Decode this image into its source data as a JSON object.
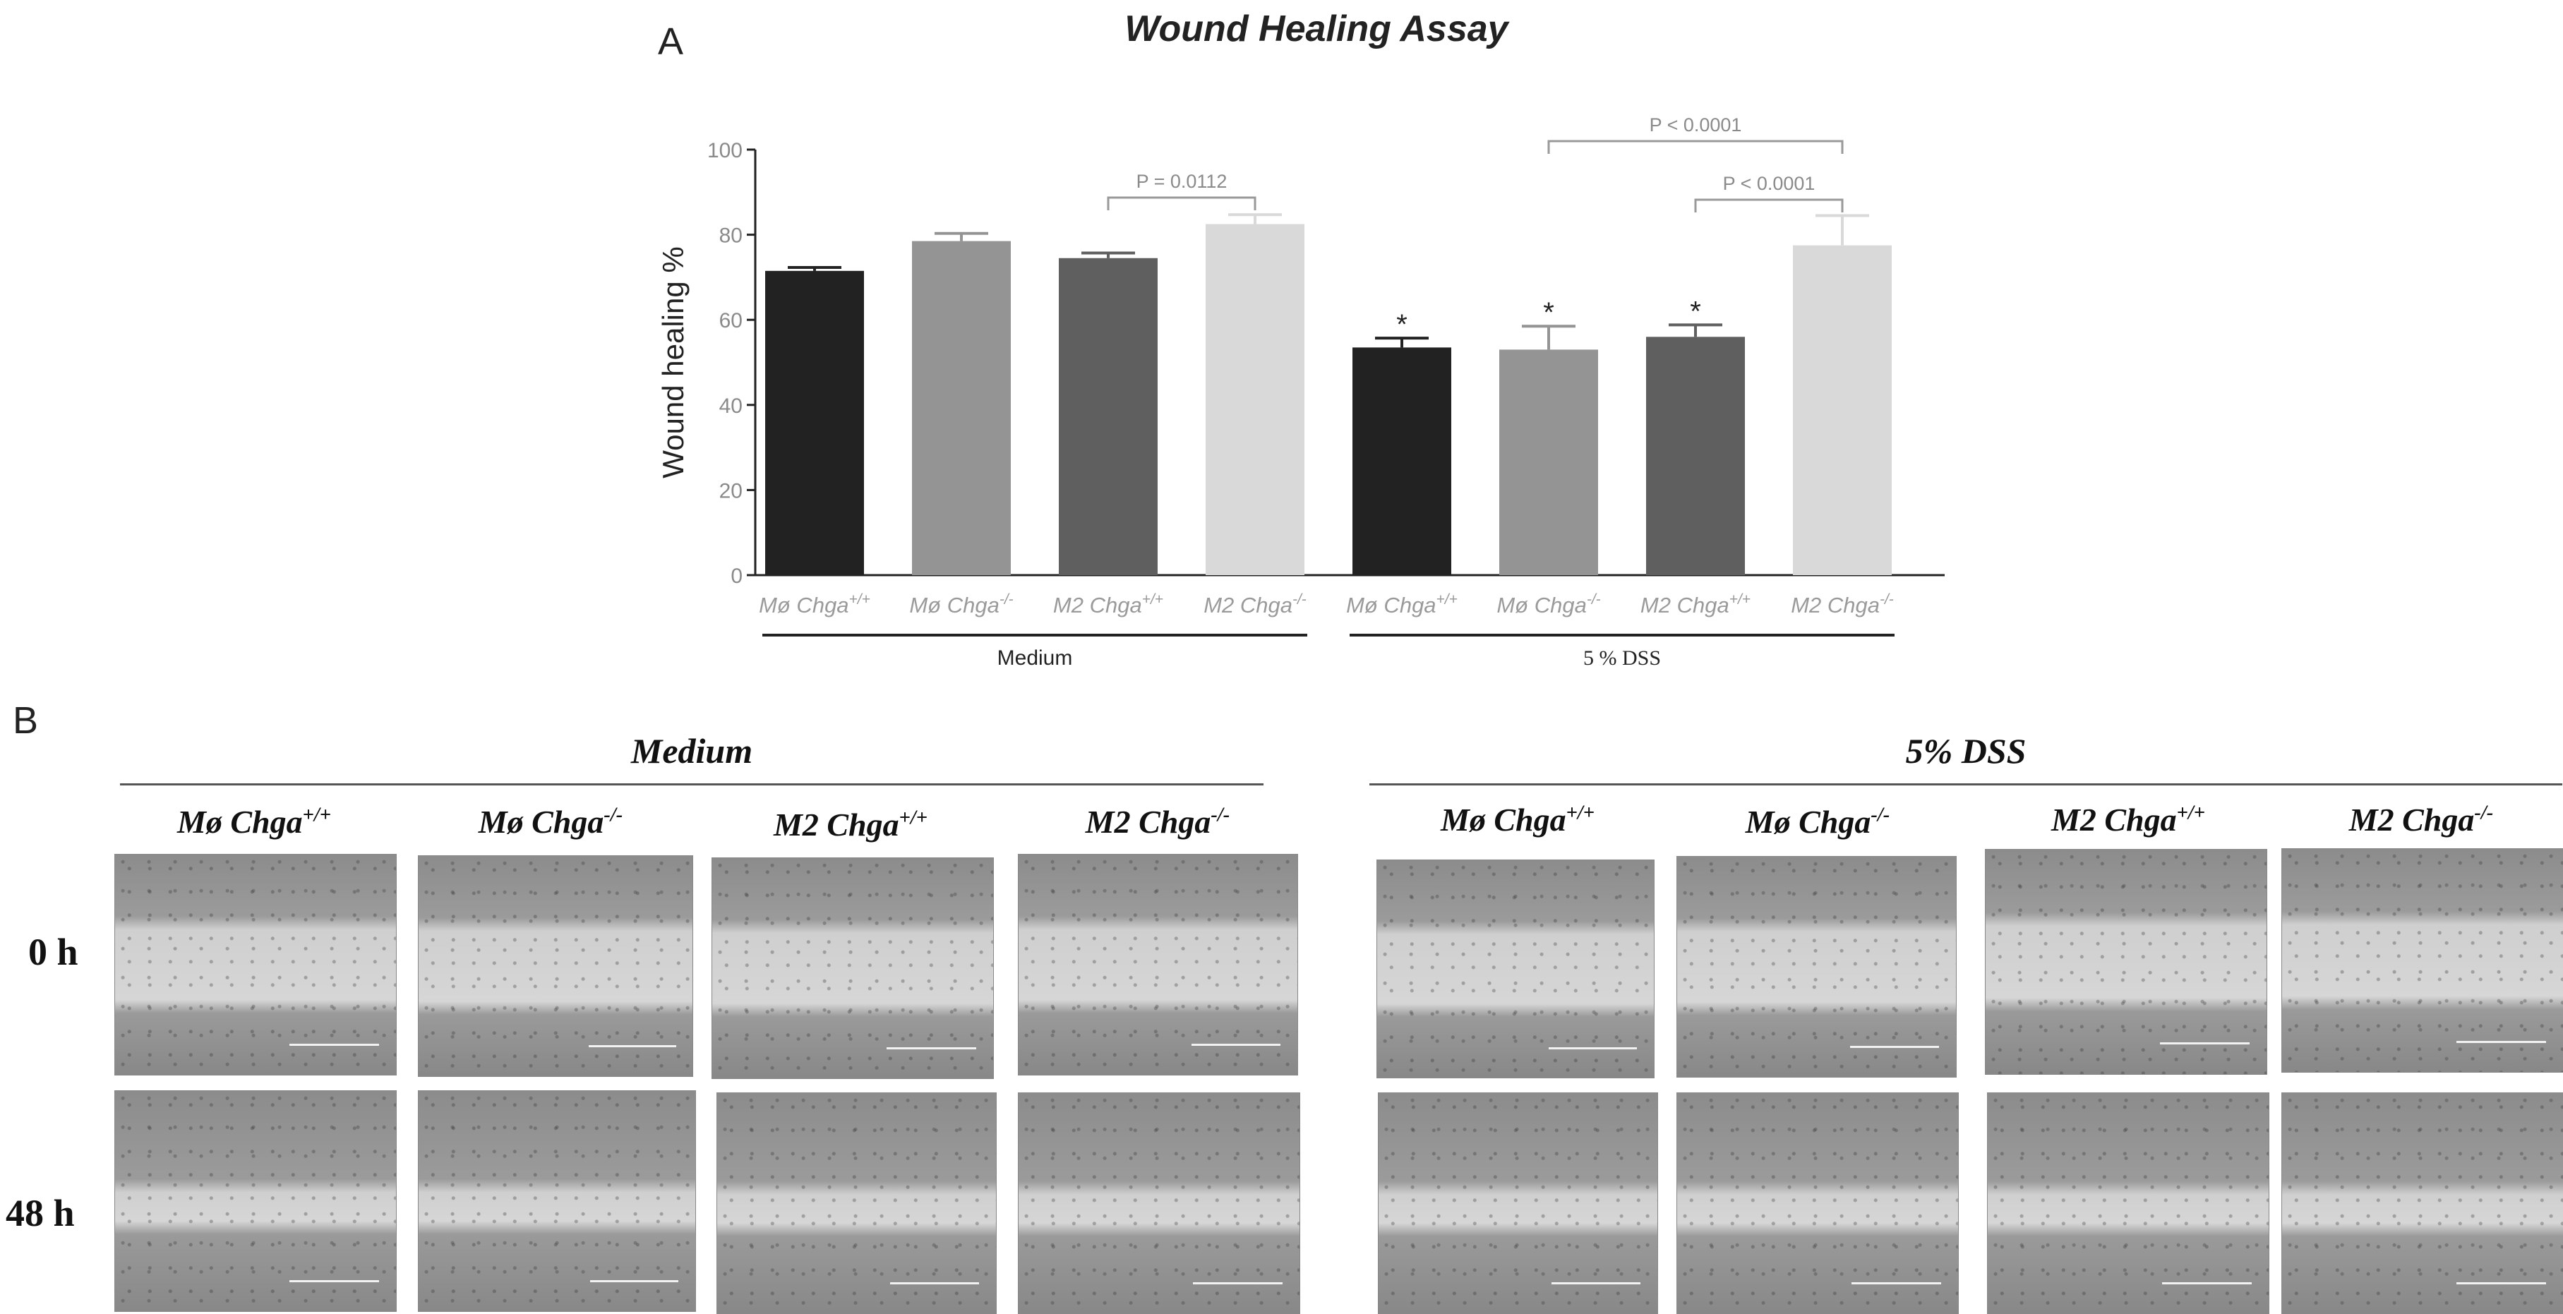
{
  "panel_a": {
    "letter": "A",
    "chart_data": {
      "type": "bar",
      "title": "Wound Healing Assay",
      "ylabel": "Wound healing %",
      "ylim": [
        0,
        100
      ],
      "yticks": [
        0,
        20,
        40,
        60,
        80,
        100
      ],
      "categories": [
        {
          "name": "Mø Chga",
          "sup": "+/+"
        },
        {
          "name": "Mø Chga",
          "sup": "-/-"
        },
        {
          "name": "M2 Chga",
          "sup": "+/+"
        },
        {
          "name": "M2 Chga",
          "sup": "-/-"
        },
        {
          "name": "Mø Chga",
          "sup": "+/+"
        },
        {
          "name": "Mø Chga",
          "sup": "-/-"
        },
        {
          "name": "M2 Chga",
          "sup": "+/+"
        },
        {
          "name": "M2 Chga",
          "sup": "-/-"
        }
      ],
      "values": [
        71.5,
        78.5,
        74.5,
        82.5,
        53.5,
        53,
        56,
        77.5
      ],
      "errors": [
        0.8,
        1.8,
        1.2,
        2.2,
        2.2,
        5.5,
        2.8,
        7
      ],
      "colors": [
        "#222222",
        "#949494",
        "#5f5f5f",
        "#d9d9d9",
        "#222222",
        "#949494",
        "#5f5f5f",
        "#d9d9d9"
      ],
      "markers": [
        "",
        "",
        "",
        "",
        "*",
        "*",
        "*",
        ""
      ],
      "groups": [
        {
          "label": "Medium",
          "from": 0,
          "to": 3
        },
        {
          "label": "5 % DSS",
          "from": 4,
          "to": 7
        }
      ],
      "significance": [
        {
          "from": 2,
          "to": 3,
          "label": "P = 0.0112"
        },
        {
          "from": 5,
          "to": 7,
          "label": "P < 0.0001"
        },
        {
          "from": 6,
          "to": 7,
          "label": "P < 0.0001"
        }
      ],
      "grid": false
    }
  },
  "panel_b": {
    "letter": "B",
    "groups": [
      {
        "title": "Medium",
        "columns": [
          {
            "name": "Mø Chga",
            "sup": "+/+"
          },
          {
            "name": "Mø Chga",
            "sup": "-/-"
          },
          {
            "name": "M2 Chga",
            "sup": "+/+"
          },
          {
            "name": "M2 Chga",
            "sup": "-/-"
          }
        ]
      },
      {
        "title": "5% DSS",
        "columns": [
          {
            "name": "Mø Chga",
            "sup": "+/+"
          },
          {
            "name": "Mø Chga",
            "sup": "-/-"
          },
          {
            "name": "M2 Chga",
            "sup": "+/+"
          },
          {
            "name": "M2 Chga",
            "sup": "-/-"
          }
        ]
      }
    ],
    "rows": [
      "0 h",
      "48 h"
    ]
  }
}
